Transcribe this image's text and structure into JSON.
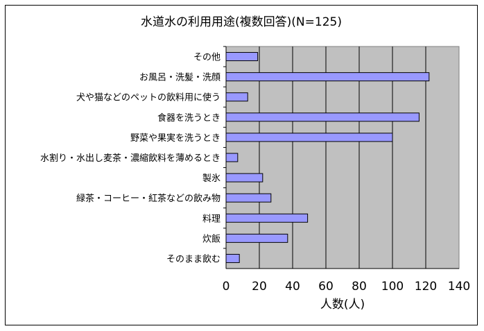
{
  "chart_data": {
    "type": "bar",
    "orientation": "horizontal",
    "title": "水道水の利用用途(複数回答)(N=125)",
    "xlabel": "人数(人)",
    "ylabel": "",
    "xlim": [
      0,
      140
    ],
    "xticks": [
      "0",
      "20",
      "40",
      "60",
      "80",
      "100",
      "120",
      "140"
    ],
    "grid": true,
    "categories": [
      "その他",
      "お風呂・洗髪・洗顔",
      "犬や猫などのペットの飲料用に使う",
      "食器を洗うとき",
      "野菜や果実を洗うとき",
      "水割り・水出し麦茶・濃縮飲料を薄めるとき",
      "製氷",
      "緑茶・コーヒー・紅茶などの飲み物",
      "料理",
      "炊飯",
      "そのまま飲む"
    ],
    "values": [
      19,
      122,
      13,
      116,
      100,
      7,
      22,
      27,
      49,
      37,
      8
    ],
    "colors": {
      "bar": "#9999ff",
      "plot_bg": "#c0c0c0",
      "bar_border": "#000000"
    }
  }
}
